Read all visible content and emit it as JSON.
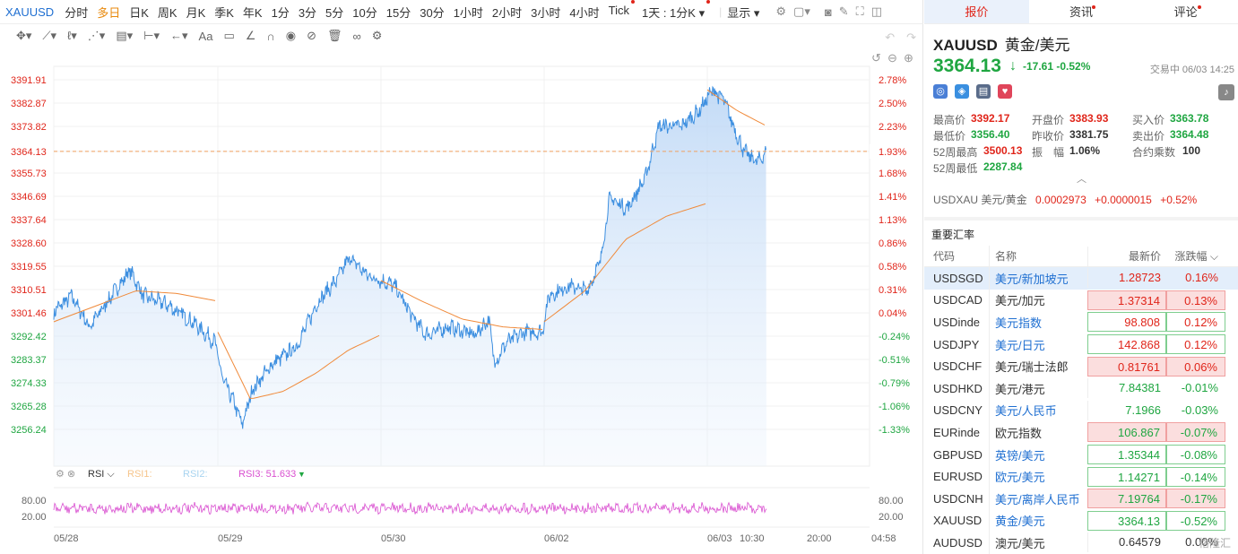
{
  "toolbar": {
    "symbol": "XAUUSD",
    "periods": [
      "分时",
      "多日",
      "日K",
      "周K",
      "月K",
      "季K",
      "年K",
      "1分",
      "3分",
      "5分",
      "10分",
      "15分",
      "30分",
      "1小时",
      "2小时",
      "3小时",
      "4小时",
      "Tick"
    ],
    "active_period": "多日",
    "interval_select": "1天 : 1分K",
    "display_label": "显示",
    "font_tool_label": "Aa"
  },
  "chart": {
    "price_line_color": "#3d8fe0",
    "ma_line_color": "#f08a3a",
    "current_price_label": "3364.13",
    "y_ticks_price": [
      "3391.91",
      "3382.87",
      "3373.82",
      "3364.13",
      "3355.73",
      "3346.69",
      "3337.64",
      "3328.60",
      "3319.55",
      "3310.51",
      "3301.46",
      "3292.42",
      "3283.37",
      "3274.33",
      "3265.28",
      "3256.24"
    ],
    "y_ticks_pct": [
      "2.78%",
      "2.50%",
      "2.23%",
      "1.93%",
      "1.68%",
      "1.41%",
      "1.13%",
      "0.86%",
      "0.58%",
      "0.31%",
      "0.04%",
      "-0.24%",
      "-0.51%",
      "-0.79%",
      "-1.06%",
      "-1.33%"
    ],
    "x_ticks": [
      "05/28",
      "05/29",
      "05/30",
      "06/02",
      "06/03",
      "10:30",
      "20:00",
      "04:58"
    ],
    "rsi": {
      "label": "RSI",
      "rsi1": "RSI1:",
      "rsi2": "RSI2:",
      "rsi3": "RSI3: 51.633",
      "ticks": [
        "80.00",
        "20.00"
      ],
      "color": "#d94fd0"
    }
  },
  "quote": {
    "tabs": [
      "报价",
      "资讯",
      "评论"
    ],
    "active_tab": "报价",
    "symbol": "XAUUSD",
    "name": "黄金/美元",
    "price": "3364.13",
    "change": "-17.61",
    "change_pct": "-0.52%",
    "status": "交易中 06/03 14:25",
    "stats": [
      [
        [
          "最高价",
          "3392.17",
          "red"
        ],
        [
          "开盘价",
          "3383.93",
          "red"
        ],
        [
          "买入价",
          "3363.78",
          "green"
        ]
      ],
      [
        [
          "最低价",
          "3356.40",
          "green"
        ],
        [
          "昨收价",
          "3381.75",
          "dark"
        ],
        [
          "卖出价",
          "3364.48",
          "green"
        ]
      ],
      [
        [
          "52周最高",
          "3500.13",
          "red"
        ],
        [
          "振　幅",
          "1.06%",
          "dark"
        ],
        [
          "合约乘数",
          "100",
          "dark"
        ]
      ],
      [
        [
          "52周最低",
          "2287.84",
          "green"
        ]
      ]
    ],
    "usdxau": {
      "label": "USDXAU 美元/黄金",
      "value": "0.0002973",
      "change": "+0.0000015",
      "pct": "+0.52%"
    }
  },
  "fx": {
    "title": "重要汇率",
    "headers": [
      "代码",
      "名称",
      "最新价",
      "涨跌幅"
    ],
    "rows": [
      {
        "code": "USDSGD",
        "name": "美元/新加坡元",
        "price": "1.28723",
        "pct": "0.16%",
        "dir": "up",
        "box": "",
        "link": true,
        "sel": true
      },
      {
        "code": "USDCAD",
        "name": "美元/加元",
        "price": "1.37314",
        "pct": "0.13%",
        "dir": "up",
        "box": "r",
        "link": false,
        "sel": false
      },
      {
        "code": "USDinde",
        "name": "美元指数",
        "price": "98.808",
        "pct": "0.12%",
        "dir": "up",
        "box": "g",
        "link": true,
        "sel": false
      },
      {
        "code": "USDJPY",
        "name": "美元/日元",
        "price": "142.868",
        "pct": "0.12%",
        "dir": "up",
        "box": "g",
        "link": true,
        "sel": false
      },
      {
        "code": "USDCHF",
        "name": "美元/瑞士法郎",
        "price": "0.81761",
        "pct": "0.06%",
        "dir": "up",
        "box": "r",
        "link": false,
        "sel": false
      },
      {
        "code": "USDHKD",
        "name": "美元/港元",
        "price": "7.84381",
        "pct": "-0.01%",
        "dir": "down",
        "box": "",
        "link": false,
        "sel": false
      },
      {
        "code": "USDCNY",
        "name": "美元/人民币",
        "price": "7.1966",
        "pct": "-0.03%",
        "dir": "down",
        "box": "",
        "link": true,
        "sel": false
      },
      {
        "code": "EURinde",
        "name": "欧元指数",
        "price": "106.867",
        "pct": "-0.07%",
        "dir": "down",
        "box": "r",
        "link": false,
        "sel": false
      },
      {
        "code": "GBPUSD",
        "name": "英镑/美元",
        "price": "1.35344",
        "pct": "-0.08%",
        "dir": "down",
        "box": "g",
        "link": true,
        "sel": false
      },
      {
        "code": "EURUSD",
        "name": "欧元/美元",
        "price": "1.14271",
        "pct": "-0.14%",
        "dir": "down",
        "box": "g",
        "link": true,
        "sel": false
      },
      {
        "code": "USDCNH",
        "name": "美元/离岸人民币",
        "price": "7.19764",
        "pct": "-0.17%",
        "dir": "down",
        "box": "r",
        "link": true,
        "sel": false
      },
      {
        "code": "XAUUSD",
        "name": "黄金/美元",
        "price": "3364.13",
        "pct": "-0.52%",
        "dir": "down",
        "box": "g",
        "link": true,
        "sel": false
      },
      {
        "code": "AUDUSD",
        "name": "澳元/美元",
        "price": "0.64579",
        "pct": "0.00%",
        "dir": "flat",
        "box": "",
        "link": false,
        "sel": false
      }
    ]
  },
  "watermark": "格隆汇"
}
